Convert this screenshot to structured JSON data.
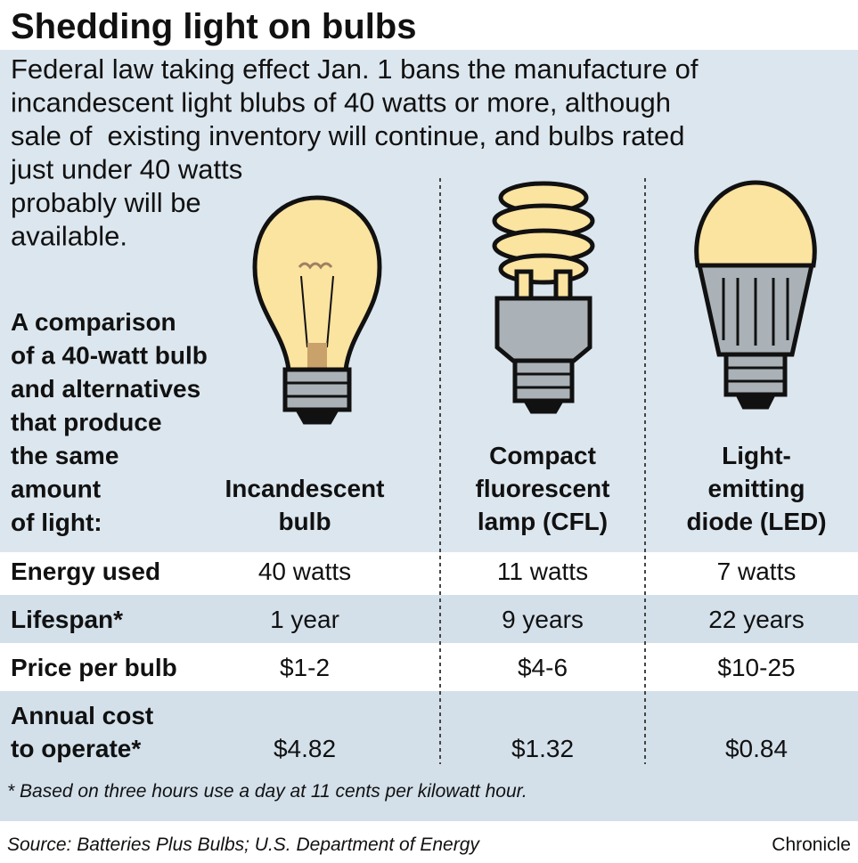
{
  "header": {
    "title": "Shedding light on bulbs",
    "intro": [
      "Federal law taking effect Jan. 1 bans the manufacture of",
      "incandescent light blubs of 40 watts or more, although",
      "sale of  existing inventory will continue, and bulbs rated",
      "just under 40 watts",
      "probably will be",
      "available."
    ]
  },
  "table": {
    "caption": [
      "A comparison",
      "of a 40-watt bulb",
      "and alternatives",
      "that produce",
      "the same",
      "amount",
      "of light:"
    ],
    "columns": [
      [
        "Incandescent",
        "bulb"
      ],
      [
        "Compact",
        "fluorescent",
        "lamp (CFL)"
      ],
      [
        "Light-",
        "emitting",
        "diode (LED)"
      ]
    ],
    "rows": [
      {
        "label": [
          "Energy used"
        ],
        "cells": [
          "40 watts",
          "11 watts",
          "7 watts"
        ]
      },
      {
        "label": [
          "Lifespan*"
        ],
        "cells": [
          "1 year",
          "9 years",
          "22 years"
        ]
      },
      {
        "label": [
          "Price per bulb"
        ],
        "cells": [
          "$1-2",
          "$4-6",
          "$10-25"
        ]
      },
      {
        "label": [
          "Annual cost",
          "to operate*"
        ],
        "cells": [
          "$4.82",
          "$1.32",
          "$0.84"
        ]
      }
    ]
  },
  "footnote": "* Based on three hours use a day at 11 cents per kilowatt hour.",
  "source": "Source: Batteries Plus Bulbs; U.S. Department of Energy",
  "credit": "Chronicle"
}
